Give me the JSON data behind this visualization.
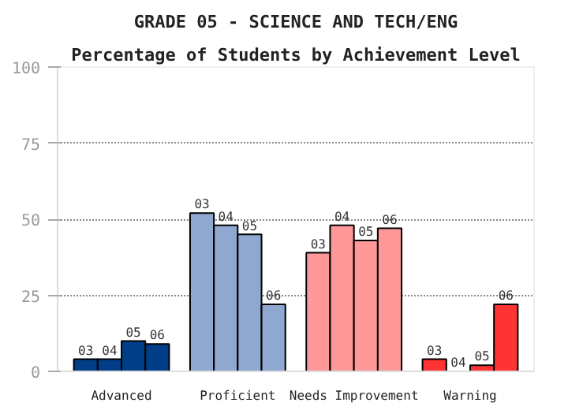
{
  "chart_data": {
    "type": "bar",
    "title": "GRADE 05 - SCIENCE AND TECH/ENG",
    "subtitle": "Percentage of Students by Achievement Level",
    "categories": [
      "Advanced",
      "Proficient",
      "Needs Improvement",
      "Warning"
    ],
    "series": [
      {
        "name": "03",
        "colors": [
          "#003f87",
          "#8fa8cf",
          "#ff9999",
          "#ff3333"
        ],
        "values": [
          4,
          52,
          39,
          4
        ]
      },
      {
        "name": "04",
        "colors": [
          "#003f87",
          "#8fa8cf",
          "#ff9999",
          "#ff3333"
        ],
        "values": [
          4,
          48,
          48,
          0
        ]
      },
      {
        "name": "05",
        "colors": [
          "#003f87",
          "#8fa8cf",
          "#ff9999",
          "#ff3333"
        ],
        "values": [
          10,
          45,
          43,
          2
        ]
      },
      {
        "name": "06",
        "colors": [
          "#003f87",
          "#8fa8cf",
          "#ff9999",
          "#ff3333"
        ],
        "values": [
          9,
          22,
          47,
          22
        ]
      }
    ],
    "ylim": [
      0,
      100
    ],
    "yticks": [
      0,
      25,
      50,
      75,
      100
    ],
    "grid": "y"
  }
}
